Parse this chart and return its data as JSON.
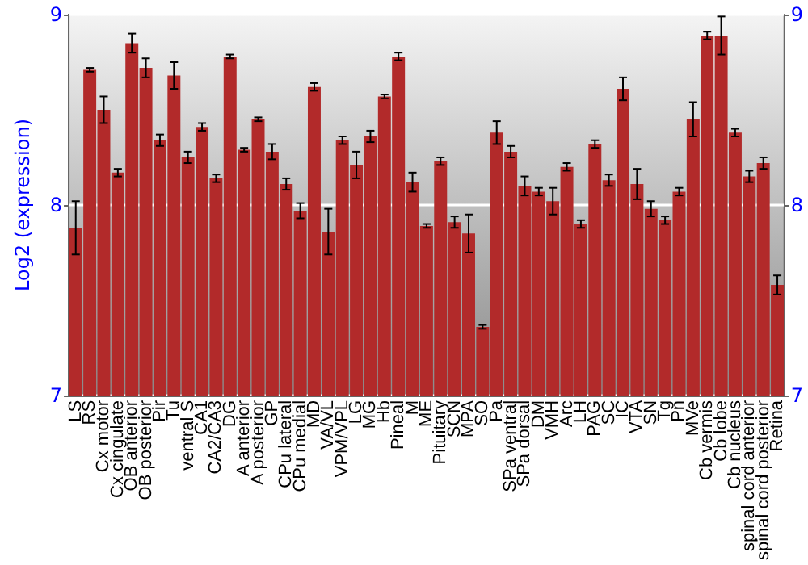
{
  "chart_data": {
    "type": "bar",
    "ylabel": "Log2 (expression)",
    "categories": [
      "LS",
      "RS",
      "Cx motor",
      "Cx cingulate",
      "OB anterior",
      "OB posterior",
      "Pir",
      "Tu",
      "ventral S",
      "CA1",
      "CA2/CA3",
      "DG",
      "A anterior",
      "A posterior",
      "GP",
      "CPu lateral",
      "CPu medial",
      "MD",
      "VA/VL",
      "VPM/VPL",
      "LG",
      "MG",
      "Hb",
      "Pineal",
      "M",
      "ME",
      "Pituitary",
      "SCN",
      "MPA",
      "SO",
      "Pa",
      "SPa ventral",
      "SPa dorsal",
      "DM",
      "VMH",
      "Arc",
      "LH",
      "PAG",
      "SC",
      "IC",
      "VTA",
      "SN",
      "Tg",
      "Pn",
      "MVe",
      "Cb vermis",
      "Cb lobe",
      "Cb nucleus",
      "spinal cord anterior",
      "spinal cord posterior",
      "Retina"
    ],
    "values": [
      7.88,
      8.71,
      8.5,
      8.17,
      8.85,
      8.72,
      8.34,
      8.68,
      8.25,
      8.41,
      8.14,
      8.78,
      8.29,
      8.45,
      8.28,
      8.11,
      7.97,
      8.62,
      7.86,
      8.34,
      8.21,
      8.36,
      8.57,
      8.78,
      8.12,
      7.89,
      8.23,
      7.91,
      7.85,
      7.36,
      8.38,
      8.28,
      8.1,
      8.07,
      8.02,
      8.2,
      7.9,
      8.32,
      8.13,
      8.61,
      8.11,
      7.98,
      7.92,
      8.07,
      8.45,
      8.89,
      8.89,
      8.38,
      8.15,
      8.22,
      7.58
    ],
    "errors": [
      0.14,
      0.01,
      0.07,
      0.02,
      0.05,
      0.05,
      0.03,
      0.07,
      0.03,
      0.02,
      0.02,
      0.01,
      0.01,
      0.01,
      0.04,
      0.03,
      0.04,
      0.02,
      0.12,
      0.02,
      0.07,
      0.03,
      0.01,
      0.02,
      0.05,
      0.01,
      0.02,
      0.03,
      0.1,
      0.01,
      0.06,
      0.03,
      0.05,
      0.02,
      0.07,
      0.02,
      0.02,
      0.02,
      0.03,
      0.06,
      0.08,
      0.04,
      0.02,
      0.02,
      0.09,
      0.02,
      0.1,
      0.02,
      0.03,
      0.03,
      0.05
    ],
    "color": "#b22a2a",
    "ylim": [
      7,
      9
    ],
    "yticks": [
      7,
      8,
      9
    ],
    "y2lim": [
      7,
      9
    ],
    "y2ticks": [
      7,
      8,
      9
    ],
    "grid": "y"
  }
}
